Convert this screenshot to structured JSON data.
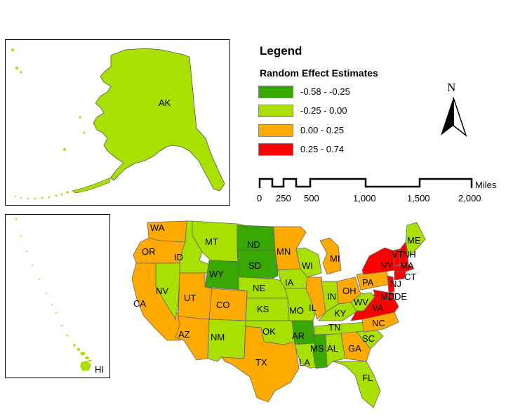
{
  "legend": {
    "title": "Legend",
    "subtitle": "Random Effect Estimates",
    "classes": [
      {
        "label": "-0.58 - -0.25",
        "color": "#38a800"
      },
      {
        "label": "-0.25 - 0.00",
        "color": "#a8e000"
      },
      {
        "label": "0.00 - 0.25",
        "color": "#ffaa00"
      },
      {
        "label": "0.25 - 0.74",
        "color": "#ff0000"
      }
    ]
  },
  "north_arrow": {
    "label": "N"
  },
  "scale_bar": {
    "unit": "Miles",
    "ticks": [
      "0",
      "250",
      "500",
      "1,000",
      "1,500",
      "2,000"
    ]
  },
  "insets": {
    "alaska": {
      "label": "AK",
      "color": "#a8e000"
    },
    "hawaii": {
      "label": "HI",
      "color": "#a8e000"
    }
  },
  "states": [
    {
      "abbr": "WA",
      "color": "#ffaa00"
    },
    {
      "abbr": "OR",
      "color": "#ffaa00"
    },
    {
      "abbr": "CA",
      "color": "#ffaa00"
    },
    {
      "abbr": "ID",
      "color": "#a8e000"
    },
    {
      "abbr": "NV",
      "color": "#a8e000"
    },
    {
      "abbr": "MT",
      "color": "#a8e000"
    },
    {
      "abbr": "WY",
      "color": "#38a800"
    },
    {
      "abbr": "UT",
      "color": "#ffaa00"
    },
    {
      "abbr": "AZ",
      "color": "#ffaa00"
    },
    {
      "abbr": "CO",
      "color": "#ffaa00"
    },
    {
      "abbr": "NM",
      "color": "#a8e000"
    },
    {
      "abbr": "ND",
      "color": "#38a800"
    },
    {
      "abbr": "SD",
      "color": "#38a800"
    },
    {
      "abbr": "NE",
      "color": "#a8e000"
    },
    {
      "abbr": "KS",
      "color": "#a8e000"
    },
    {
      "abbr": "OK",
      "color": "#a8e000"
    },
    {
      "abbr": "TX",
      "color": "#ffaa00"
    },
    {
      "abbr": "MN",
      "color": "#ffaa00"
    },
    {
      "abbr": "IA",
      "color": "#a8e000"
    },
    {
      "abbr": "MO",
      "color": "#a8e000"
    },
    {
      "abbr": "AR",
      "color": "#38a800"
    },
    {
      "abbr": "LA",
      "color": "#a8e000"
    },
    {
      "abbr": "WI",
      "color": "#a8e000"
    },
    {
      "abbr": "IL",
      "color": "#ffaa00"
    },
    {
      "abbr": "MI",
      "color": "#ffaa00"
    },
    {
      "abbr": "IN",
      "color": "#a8e000"
    },
    {
      "abbr": "OH",
      "color": "#ffaa00"
    },
    {
      "abbr": "KY",
      "color": "#a8e000"
    },
    {
      "abbr": "TN",
      "color": "#a8e000"
    },
    {
      "abbr": "MS",
      "color": "#38a800"
    },
    {
      "abbr": "AL",
      "color": "#a8e000"
    },
    {
      "abbr": "GA",
      "color": "#ffaa00"
    },
    {
      "abbr": "FL",
      "color": "#a8e000"
    },
    {
      "abbr": "SC",
      "color": "#a8e000"
    },
    {
      "abbr": "NC",
      "color": "#ffaa00"
    },
    {
      "abbr": "VA",
      "color": "#ff0000"
    },
    {
      "abbr": "WV",
      "color": "#a8e000"
    },
    {
      "abbr": "PA",
      "color": "#ffaa00"
    },
    {
      "abbr": "NY",
      "color": "#ff0000"
    },
    {
      "abbr": "VT",
      "color": "#ff0000"
    },
    {
      "abbr": "NH",
      "color": "#ff0000"
    },
    {
      "abbr": "ME",
      "color": "#a8e000"
    },
    {
      "abbr": "MA",
      "color": "#ff0000"
    },
    {
      "abbr": "CT",
      "color": "#ff0000"
    },
    {
      "abbr": "NJ",
      "color": "#ff0000"
    },
    {
      "abbr": "MD",
      "color": "#ff0000"
    },
    {
      "abbr": "DE",
      "color": "#ff0000"
    }
  ]
}
